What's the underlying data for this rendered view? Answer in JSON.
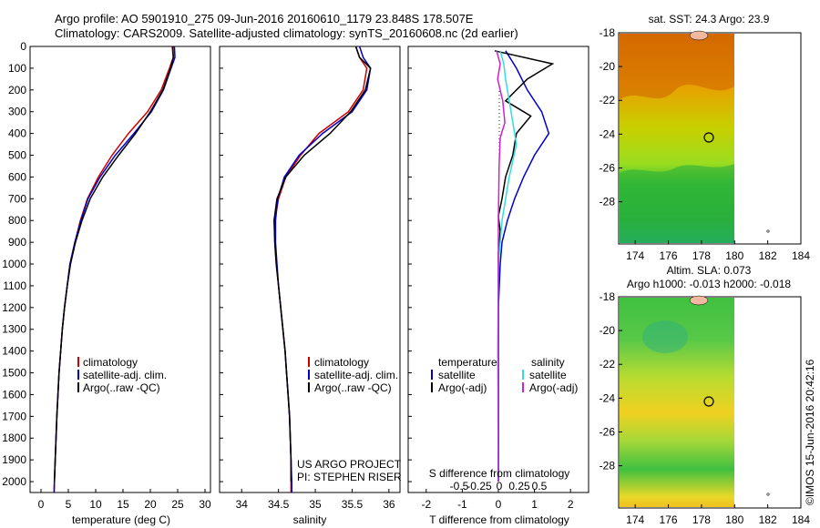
{
  "header": {
    "line1": "Argo profile: AO 5901910_275 09-Jun-2016 20160610_1179 23.848S 178.507E",
    "line2": "Climatology: CARS2009. Satellite-adjusted climatology: synTS_20160608.nc (2d earlier)"
  },
  "colors": {
    "climatology": "#cc0000",
    "satellite": "#0000cc",
    "argo": "#000000",
    "s_satellite": "#33dddd",
    "s_argo": "#cc22cc",
    "land": "#f2b8a0"
  },
  "panels": {
    "temp": {
      "xlabel": "temperature (deg C)",
      "xticks": [
        "0",
        "5",
        "10",
        "15",
        "20",
        "25",
        "30"
      ],
      "legend": [
        "climatology",
        "satellite-adj. clim.",
        "Argo(..raw -QC)"
      ]
    },
    "sal": {
      "xlabel": "salinity",
      "xticks": [
        "34",
        "34.5",
        "35",
        "35.5",
        "36"
      ],
      "legend": [
        "climatology",
        "satellite-adj. clim.",
        "Argo(..raw -QC)"
      ],
      "credit1": "US ARGO PROJECT",
      "credit2": "PI: STEPHEN RISER"
    },
    "diff": {
      "xlabel_top": "S difference from climatology",
      "xlabel_bottom": "T difference from climatology",
      "sticks": [
        "-0.5",
        "-0.25",
        "0",
        "0.25",
        "0.5"
      ],
      "tticks": [
        "-2",
        "-1",
        "0",
        "1",
        "2"
      ],
      "legend_t_title": "temperature",
      "legend_s_title": "salinity",
      "legend_t": [
        "satellite",
        "Argo(-adj)"
      ],
      "legend_s": [
        "satellite",
        "Argo(-adj)"
      ]
    },
    "yticks": [
      "0",
      "100",
      "200",
      "300",
      "400",
      "500",
      "600",
      "700",
      "800",
      "900",
      "1000",
      "1100",
      "1200",
      "1300",
      "1400",
      "1500",
      "1600",
      "1700",
      "1800",
      "1900",
      "2000"
    ]
  },
  "maps": {
    "sst_title": "sat. SST: 24.3 Argo: 23.9",
    "sla_title1": "Altim. SLA: 0.073",
    "sla_title2": "Argo h1000: -0.013 h2000: -0.018",
    "xticks": [
      "174",
      "176",
      "178",
      "180",
      "182",
      "184"
    ],
    "yticks": [
      "-18",
      "-20",
      "-22",
      "-24",
      "-26",
      "-28"
    ],
    "argo_lon": 178.507,
    "argo_lat": -23.848
  },
  "footer": "©IMOS 15-Jun-2016 20:42:16",
  "chart_data": [
    {
      "type": "line",
      "name_hint": "temperature profile",
      "xlabel": "temperature (deg C)",
      "xlim": [
        -2,
        31
      ],
      "ylim": [
        2050,
        0
      ],
      "series": [
        {
          "name": "climatology",
          "points": [
            [
              24,
              0
            ],
            [
              24.2,
              50
            ],
            [
              23.5,
              100
            ],
            [
              22,
              200
            ],
            [
              19.5,
              300
            ],
            [
              16,
              400
            ],
            [
              13,
              500
            ],
            [
              10.5,
              600
            ],
            [
              8.5,
              700
            ],
            [
              7.2,
              800
            ],
            [
              6.2,
              900
            ],
            [
              5.3,
              1000
            ],
            [
              4.8,
              1100
            ],
            [
              4.3,
              1200
            ],
            [
              3.9,
              1300
            ],
            [
              3.6,
              1400
            ],
            [
              3.3,
              1500
            ],
            [
              3.1,
              1600
            ],
            [
              2.9,
              1700
            ],
            [
              2.75,
              1800
            ],
            [
              2.6,
              1900
            ],
            [
              2.45,
              2000
            ],
            [
              2.4,
              2050
            ]
          ]
        },
        {
          "name": "satellite-adj. clim.",
          "points": [
            [
              24.4,
              0
            ],
            [
              24.5,
              50
            ],
            [
              23.8,
              100
            ],
            [
              22.4,
              200
            ],
            [
              20.2,
              300
            ],
            [
              17,
              400
            ],
            [
              13.6,
              500
            ],
            [
              10.8,
              600
            ],
            [
              8.6,
              700
            ],
            [
              7.3,
              800
            ],
            [
              6.2,
              900
            ],
            [
              5.3,
              1000
            ],
            [
              4.8,
              1100
            ],
            [
              4.3,
              1200
            ],
            [
              3.9,
              1300
            ],
            [
              3.6,
              1400
            ],
            [
              3.3,
              1500
            ],
            [
              3.1,
              1600
            ],
            [
              2.9,
              1700
            ],
            [
              2.75,
              1800
            ],
            [
              2.6,
              1900
            ],
            [
              2.45,
              2000
            ],
            [
              2.4,
              2050
            ]
          ]
        },
        {
          "name": "Argo(..raw -QC)",
          "points": [
            [
              24.1,
              0
            ],
            [
              24.2,
              50
            ],
            [
              23.7,
              100
            ],
            [
              22.3,
              200
            ],
            [
              20,
              300
            ],
            [
              17.3,
              400
            ],
            [
              14.2,
              500
            ],
            [
              11.3,
              600
            ],
            [
              9,
              700
            ],
            [
              7.5,
              800
            ],
            [
              6.3,
              900
            ],
            [
              5.4,
              1000
            ],
            [
              4.8,
              1100
            ],
            [
              4.3,
              1200
            ],
            [
              3.9,
              1300
            ],
            [
              3.6,
              1400
            ],
            [
              3.3,
              1500
            ],
            [
              3.1,
              1600
            ],
            [
              2.9,
              1700
            ],
            [
              2.75,
              1800
            ],
            [
              2.6,
              1900
            ],
            [
              2.45,
              2000
            ]
          ]
        }
      ]
    },
    {
      "type": "line",
      "name_hint": "salinity profile",
      "xlabel": "salinity",
      "xlim": [
        33.7,
        36.15
      ],
      "ylim": [
        2050,
        0
      ],
      "series": [
        {
          "name": "climatology",
          "points": [
            [
              35.55,
              0
            ],
            [
              35.6,
              50
            ],
            [
              35.7,
              100
            ],
            [
              35.65,
              200
            ],
            [
              35.45,
              300
            ],
            [
              35.05,
              400
            ],
            [
              34.8,
              500
            ],
            [
              34.6,
              600
            ],
            [
              34.5,
              700
            ],
            [
              34.45,
              800
            ],
            [
              34.45,
              900
            ],
            [
              34.47,
              1000
            ],
            [
              34.5,
              1100
            ],
            [
              34.53,
              1200
            ],
            [
              34.56,
              1300
            ],
            [
              34.59,
              1400
            ],
            [
              34.61,
              1500
            ],
            [
              34.63,
              1600
            ],
            [
              34.65,
              1700
            ],
            [
              34.66,
              1800
            ],
            [
              34.67,
              1900
            ],
            [
              34.67,
              2000
            ],
            [
              34.67,
              2050
            ]
          ]
        },
        {
          "name": "satellite-adj. clim.",
          "points": [
            [
              35.6,
              0
            ],
            [
              35.65,
              50
            ],
            [
              35.75,
              100
            ],
            [
              35.7,
              200
            ],
            [
              35.5,
              300
            ],
            [
              35.1,
              400
            ],
            [
              34.78,
              500
            ],
            [
              34.58,
              600
            ],
            [
              34.49,
              700
            ],
            [
              34.46,
              800
            ],
            [
              34.46,
              900
            ],
            [
              34.48,
              1000
            ],
            [
              34.5,
              1100
            ],
            [
              34.53,
              1200
            ],
            [
              34.56,
              1300
            ],
            [
              34.59,
              1400
            ],
            [
              34.61,
              1500
            ],
            [
              34.63,
              1600
            ],
            [
              34.65,
              1700
            ],
            [
              34.66,
              1800
            ],
            [
              34.67,
              1900
            ],
            [
              34.68,
              2000
            ],
            [
              34.68,
              2050
            ]
          ]
        },
        {
          "name": "Argo(..raw -QC)",
          "points": [
            [
              35.55,
              0
            ],
            [
              35.6,
              50
            ],
            [
              35.75,
              100
            ],
            [
              35.68,
              200
            ],
            [
              35.48,
              300
            ],
            [
              35.2,
              400
            ],
            [
              34.85,
              500
            ],
            [
              34.6,
              600
            ],
            [
              34.48,
              700
            ],
            [
              34.44,
              800
            ],
            [
              34.45,
              900
            ],
            [
              34.47,
              1000
            ],
            [
              34.5,
              1100
            ],
            [
              34.53,
              1200
            ],
            [
              34.56,
              1300
            ],
            [
              34.59,
              1400
            ],
            [
              34.61,
              1500
            ],
            [
              34.63,
              1600
            ],
            [
              34.65,
              1700
            ],
            [
              34.66,
              1800
            ],
            [
              34.67,
              1900
            ],
            [
              34.67,
              2000
            ]
          ]
        }
      ]
    },
    {
      "type": "line",
      "name_hint": "difference from climatology",
      "xlabel": "T difference from climatology",
      "xlabel_top": "S difference from climatology",
      "xlim": [
        -2.5,
        2.5
      ],
      "ylim": [
        2050,
        0
      ],
      "series": [
        {
          "name": "temperature satellite",
          "points": [
            [
              0.2,
              20
            ],
            [
              0.35,
              60
            ],
            [
              0.5,
              100
            ],
            [
              0.8,
              200
            ],
            [
              1.2,
              300
            ],
            [
              1.4,
              400
            ],
            [
              1.0,
              500
            ],
            [
              0.7,
              600
            ],
            [
              0.45,
              700
            ],
            [
              0.25,
              800
            ],
            [
              0.1,
              900
            ],
            [
              0.05,
              1000
            ],
            [
              0,
              1200
            ],
            [
              0,
              2000
            ]
          ]
        },
        {
          "name": "temperature Argo(-adj)",
          "points": [
            [
              -0.1,
              20
            ],
            [
              1.5,
              80
            ],
            [
              0.8,
              150
            ],
            [
              0.2,
              250
            ],
            [
              0.9,
              320
            ],
            [
              0.5,
              400
            ],
            [
              0.4,
              500
            ],
            [
              0.2,
              600
            ],
            [
              0.1,
              700
            ],
            [
              0,
              780
            ],
            [
              0.05,
              850
            ],
            [
              0,
              950
            ],
            [
              0,
              2000
            ]
          ]
        },
        {
          "name": "salinity satellite",
          "points": [
            [
              0.05,
              20
            ],
            [
              0.15,
              80
            ],
            [
              0.2,
              150
            ],
            [
              0.35,
              300
            ],
            [
              0.5,
              450
            ],
            [
              0.3,
              600
            ],
            [
              0.1,
              800
            ],
            [
              0,
              1000
            ],
            [
              -0.02,
              1400
            ],
            [
              0,
              2000
            ]
          ]
        },
        {
          "name": "salinity Argo(-adj)",
          "points": [
            [
              -0.05,
              20
            ],
            [
              0.05,
              80
            ],
            [
              -0.02,
              150
            ],
            [
              0.12,
              250
            ],
            [
              0.18,
              350
            ],
            [
              0.05,
              420
            ],
            [
              0.02,
              550
            ],
            [
              0,
              800
            ],
            [
              0,
              2000
            ]
          ]
        }
      ]
    }
  ]
}
